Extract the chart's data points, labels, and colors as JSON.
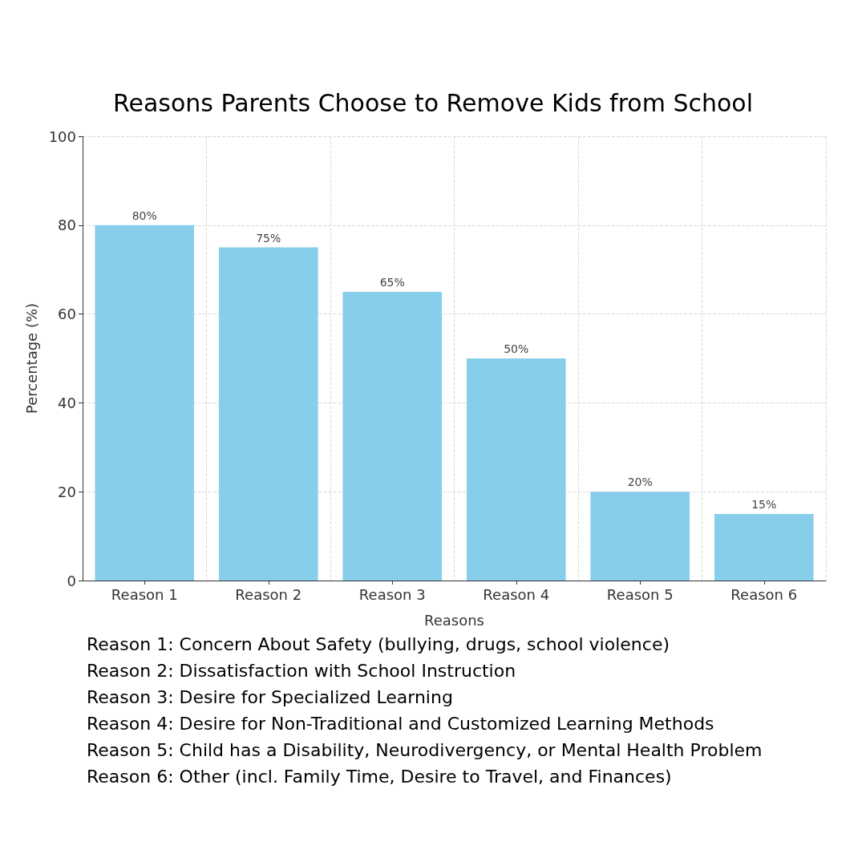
{
  "chart_data": {
    "type": "bar",
    "title": "Reasons Parents Choose to Remove Kids from School",
    "xlabel": "Reasons",
    "ylabel": "Percentage (%)",
    "categories": [
      "Reason 1",
      "Reason 2",
      "Reason 3",
      "Reason 4",
      "Reason 5",
      "Reason 6"
    ],
    "values": [
      80,
      75,
      65,
      50,
      20,
      15
    ],
    "value_labels": [
      "80%",
      "75%",
      "65%",
      "50%",
      "20%",
      "15%"
    ],
    "color": "#87ceeb",
    "ylim": [
      0,
      100
    ],
    "yticks": [
      0,
      20,
      40,
      60,
      80,
      100
    ],
    "grid": true,
    "annotations": [
      "Reason 1: Concern About Safety (bullying, drugs, school violence)",
      "Reason 2: Dissatisfaction with School Instruction",
      "Reason 3: Desire for Specialized Learning",
      "Reason 4: Desire for Non-Traditional and Customized Learning Methods",
      "Reason 5: Child has a Disability, Neurodivergency, or Mental Health Problem",
      "Reason 6: Other (incl. Family Time, Desire to Travel, and Finances)"
    ]
  }
}
